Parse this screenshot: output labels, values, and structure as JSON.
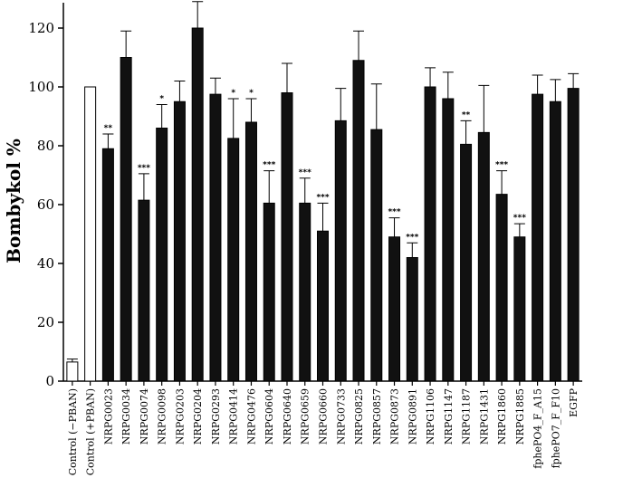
{
  "chart_data": {
    "type": "bar",
    "title": "",
    "xlabel": "",
    "ylabel": "Bombykol %",
    "ylim": [
      0,
      120
    ],
    "yticks": [
      0,
      20,
      40,
      60,
      80,
      100,
      120
    ],
    "grid": false,
    "legend": "none",
    "colors": {
      "filled": "#111111",
      "open": "#ffffff",
      "stroke": "#000000"
    },
    "categories": [
      "Control (−PBAN)",
      "Control (+PBAN)",
      "NRPG0023",
      "NRPG0034",
      "NRPG0074",
      "NRPG0098",
      "NRPG0203",
      "NRPG0204",
      "NRPG0293",
      "NRPG0414",
      "NRPG0476",
      "NRPG0604",
      "NRPG0640",
      "NRPG0659",
      "NRPG0660",
      "NRPG0733",
      "NRPG0825",
      "NRPG0857",
      "NRPG0873",
      "NRPG0891",
      "NRPG1106",
      "NRPG1147",
      "NRPG1187",
      "NRPG1431",
      "NRPG1860",
      "NRPG1885",
      "fphePO4_F_A15",
      "fphePO7_F_F10",
      "EGFP"
    ],
    "values": [
      6.5,
      100,
      79,
      110,
      61.5,
      86,
      95,
      120,
      97.5,
      82.5,
      88,
      60.5,
      98,
      60.5,
      51,
      88.5,
      109,
      85.5,
      49,
      42,
      100,
      96,
      80.5,
      84.5,
      63.5,
      49,
      97.5,
      95,
      99.5
    ],
    "errors": [
      1,
      0,
      5,
      9,
      9,
      8,
      7,
      9,
      5.5,
      13.5,
      8,
      11,
      10,
      8.5,
      9.5,
      11,
      10,
      15.5,
      6.5,
      5,
      6.5,
      9,
      8,
      16,
      8,
      4.5,
      6.5,
      7.5,
      5
    ],
    "bar_fill": [
      "open",
      "open",
      "filled",
      "filled",
      "filled",
      "filled",
      "filled",
      "filled",
      "filled",
      "filled",
      "filled",
      "filled",
      "filled",
      "filled",
      "filled",
      "filled",
      "filled",
      "filled",
      "filled",
      "filled",
      "filled",
      "filled",
      "filled",
      "filled",
      "filled",
      "filled",
      "filled",
      "filled",
      "filled"
    ],
    "significance": [
      "",
      "",
      "**",
      "",
      "***",
      "*",
      "",
      "",
      "",
      "*",
      "*",
      "***",
      "",
      "***",
      "***",
      "",
      "",
      "",
      "***",
      "***",
      "",
      "",
      "**",
      "",
      "***",
      "***",
      "",
      "",
      ""
    ]
  }
}
